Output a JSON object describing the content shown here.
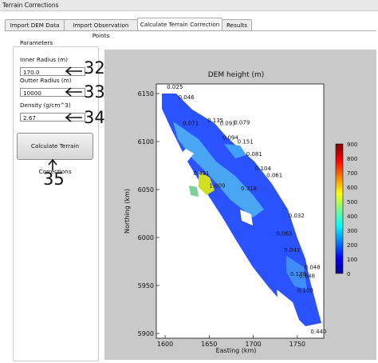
{
  "window": {
    "title": "Terrain Corrections"
  },
  "tabs": [
    {
      "label": "Import DEM Data"
    },
    {
      "label": "Import Observation Points"
    },
    {
      "label": "Calculate Terrain Correction"
    },
    {
      "label": "Results"
    }
  ],
  "parameters": {
    "title": "Parameters",
    "inner_radius": {
      "label": "Inner Radius (m)",
      "value": "170.0"
    },
    "outer_radius": {
      "label": "Outter Radius (m)",
      "value": "10000"
    },
    "density": {
      "label": "Density (g/cm^3)",
      "value": "2.67"
    },
    "calculate_button": "Calculate Terrain Corrections"
  },
  "annotations": [
    "32",
    "33",
    "34",
    "35"
  ],
  "chart_data": {
    "type": "heatmap",
    "title": "DEM height (m)",
    "xlabel": "Easting (km)",
    "ylabel": "Northing (km)",
    "xlim": [
      1590,
      1780
    ],
    "ylim": [
      5895,
      6160
    ],
    "x_ticks": [
      "1600",
      "1650",
      "1700",
      "1750"
    ],
    "y_ticks": [
      "5900",
      "5950",
      "6000",
      "6050",
      "6100",
      "6150"
    ],
    "colorbar": {
      "min": 0,
      "max": 900,
      "ticks": [
        "900",
        "800",
        "700",
        "600",
        "500",
        "400",
        "300",
        "200",
        "100",
        "0"
      ]
    },
    "point_labels": [
      {
        "text": "0.025",
        "x": 1602,
        "y": 6155
      },
      {
        "text": "0.046",
        "x": 1615,
        "y": 6144
      },
      {
        "text": "0.071",
        "x": 1620,
        "y": 6117
      },
      {
        "text": "0.135",
        "x": 1648,
        "y": 6120
      },
      {
        "text": "0.093",
        "x": 1662,
        "y": 6117
      },
      {
        "text": "0.079",
        "x": 1678,
        "y": 6118
      },
      {
        "text": "0.094",
        "x": 1665,
        "y": 6102
      },
      {
        "text": "0.151",
        "x": 1682,
        "y": 6098
      },
      {
        "text": "0.081",
        "x": 1692,
        "y": 6085
      },
      {
        "text": "0.104",
        "x": 1702,
        "y": 6070
      },
      {
        "text": "0.431",
        "x": 1632,
        "y": 6065
      },
      {
        "text": "0.061",
        "x": 1715,
        "y": 6063
      },
      {
        "text": "1.009",
        "x": 1650,
        "y": 6052
      },
      {
        "text": "0.318",
        "x": 1686,
        "y": 6049
      },
      {
        "text": "0.032",
        "x": 1740,
        "y": 6021
      },
      {
        "text": "0.063",
        "x": 1726,
        "y": 6002
      },
      {
        "text": "0.042",
        "x": 1735,
        "y": 5985
      },
      {
        "text": "0.048",
        "x": 1758,
        "y": 5967
      },
      {
        "text": "0.178",
        "x": 1742,
        "y": 5960
      },
      {
        "text": "0.648",
        "x": 1752,
        "y": 5958
      },
      {
        "text": "0.100",
        "x": 1750,
        "y": 5943
      },
      {
        "text": "0.440",
        "x": 1765,
        "y": 5900
      }
    ]
  }
}
